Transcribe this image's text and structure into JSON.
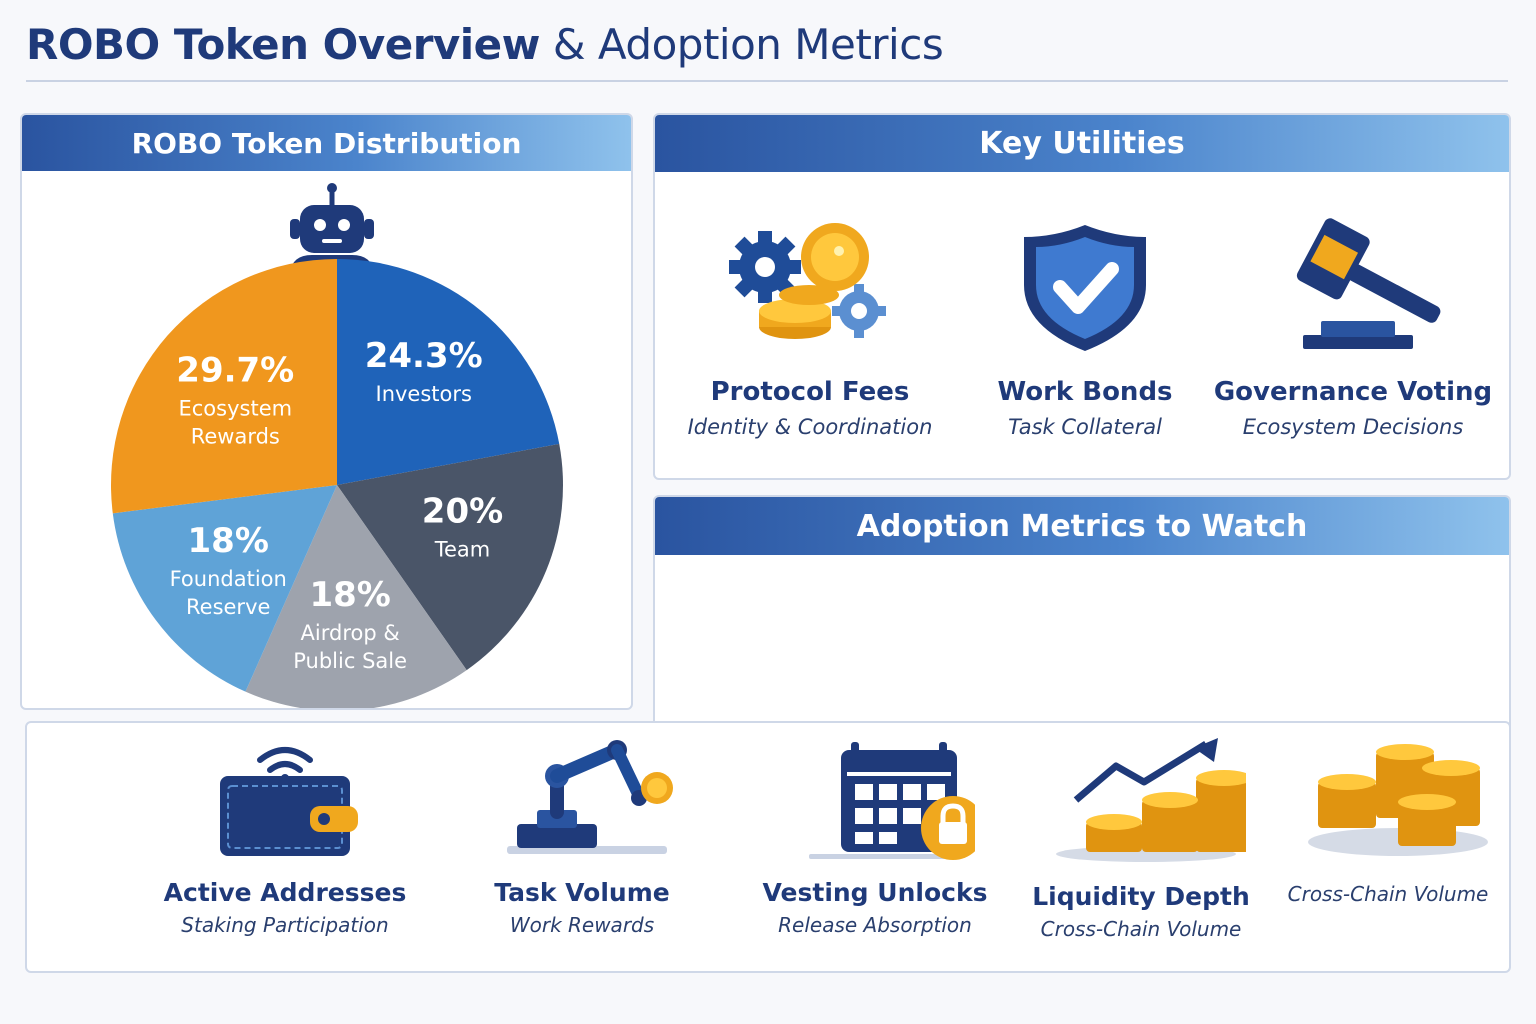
{
  "header": {
    "title_bold": "ROBO Token Overview",
    "title_light": "& Adoption Metrics"
  },
  "distribution": {
    "title": "ROBO Token Distribution"
  },
  "chart_data": {
    "type": "pie",
    "title": "ROBO Token Distribution",
    "slices": [
      {
        "pct_label": "24.3%",
        "value": 24.3,
        "label_lines": [
          "Investors"
        ],
        "color": "#1f63b9"
      },
      {
        "pct_label": "20%",
        "value": 20,
        "label_lines": [
          "Team"
        ],
        "color": "#4a5568"
      },
      {
        "pct_label": "18%",
        "value": 18,
        "label_lines": [
          "Airdrop &",
          "Public Sale"
        ],
        "color": "#9ea3ad"
      },
      {
        "pct_label": "18%",
        "value": 18,
        "label_lines": [
          "Foundation",
          "Reserve"
        ],
        "color": "#5fa3d7"
      },
      {
        "pct_label": "29.7%",
        "value": 29.7,
        "label_lines": [
          "Ecosystem",
          "Rewards"
        ],
        "color": "#f0971e"
      }
    ]
  },
  "utilities": {
    "title": "Key Utilities",
    "items": [
      {
        "name": "Protocol Fees",
        "sub": "Identity & Coordination",
        "icon": "gear-coins-icon"
      },
      {
        "name": "Work Bonds",
        "sub": "Task Collateral",
        "icon": "shield-check-icon"
      },
      {
        "name": "Governance Voting",
        "sub": "Ecosystem Decisions",
        "icon": "gavel-icon"
      }
    ]
  },
  "adoption": {
    "title": "Adoption Metrics to Watch",
    "metrics": [
      {
        "name": "Active Addresses",
        "sub": "Staking Participation",
        "icon": "wallet-icon"
      },
      {
        "name": "Task Volume",
        "sub": "Work Rewards",
        "icon": "robot-arm-icon"
      },
      {
        "name": "Vesting Unlocks",
        "sub": "Release Absorption",
        "icon": "calendar-lock-icon"
      },
      {
        "name": "Liquidity Depth",
        "sub": "Cross-Chain Volume",
        "icon": "coins-growth-icon"
      },
      {
        "name": "",
        "sub": "Cross-Chain Volume",
        "icon": "coin-stacks-icon"
      }
    ]
  },
  "colors": {
    "navy": "#1f3a7a",
    "accent_blue": "#2a54a0",
    "gold": "#f0a81e"
  }
}
